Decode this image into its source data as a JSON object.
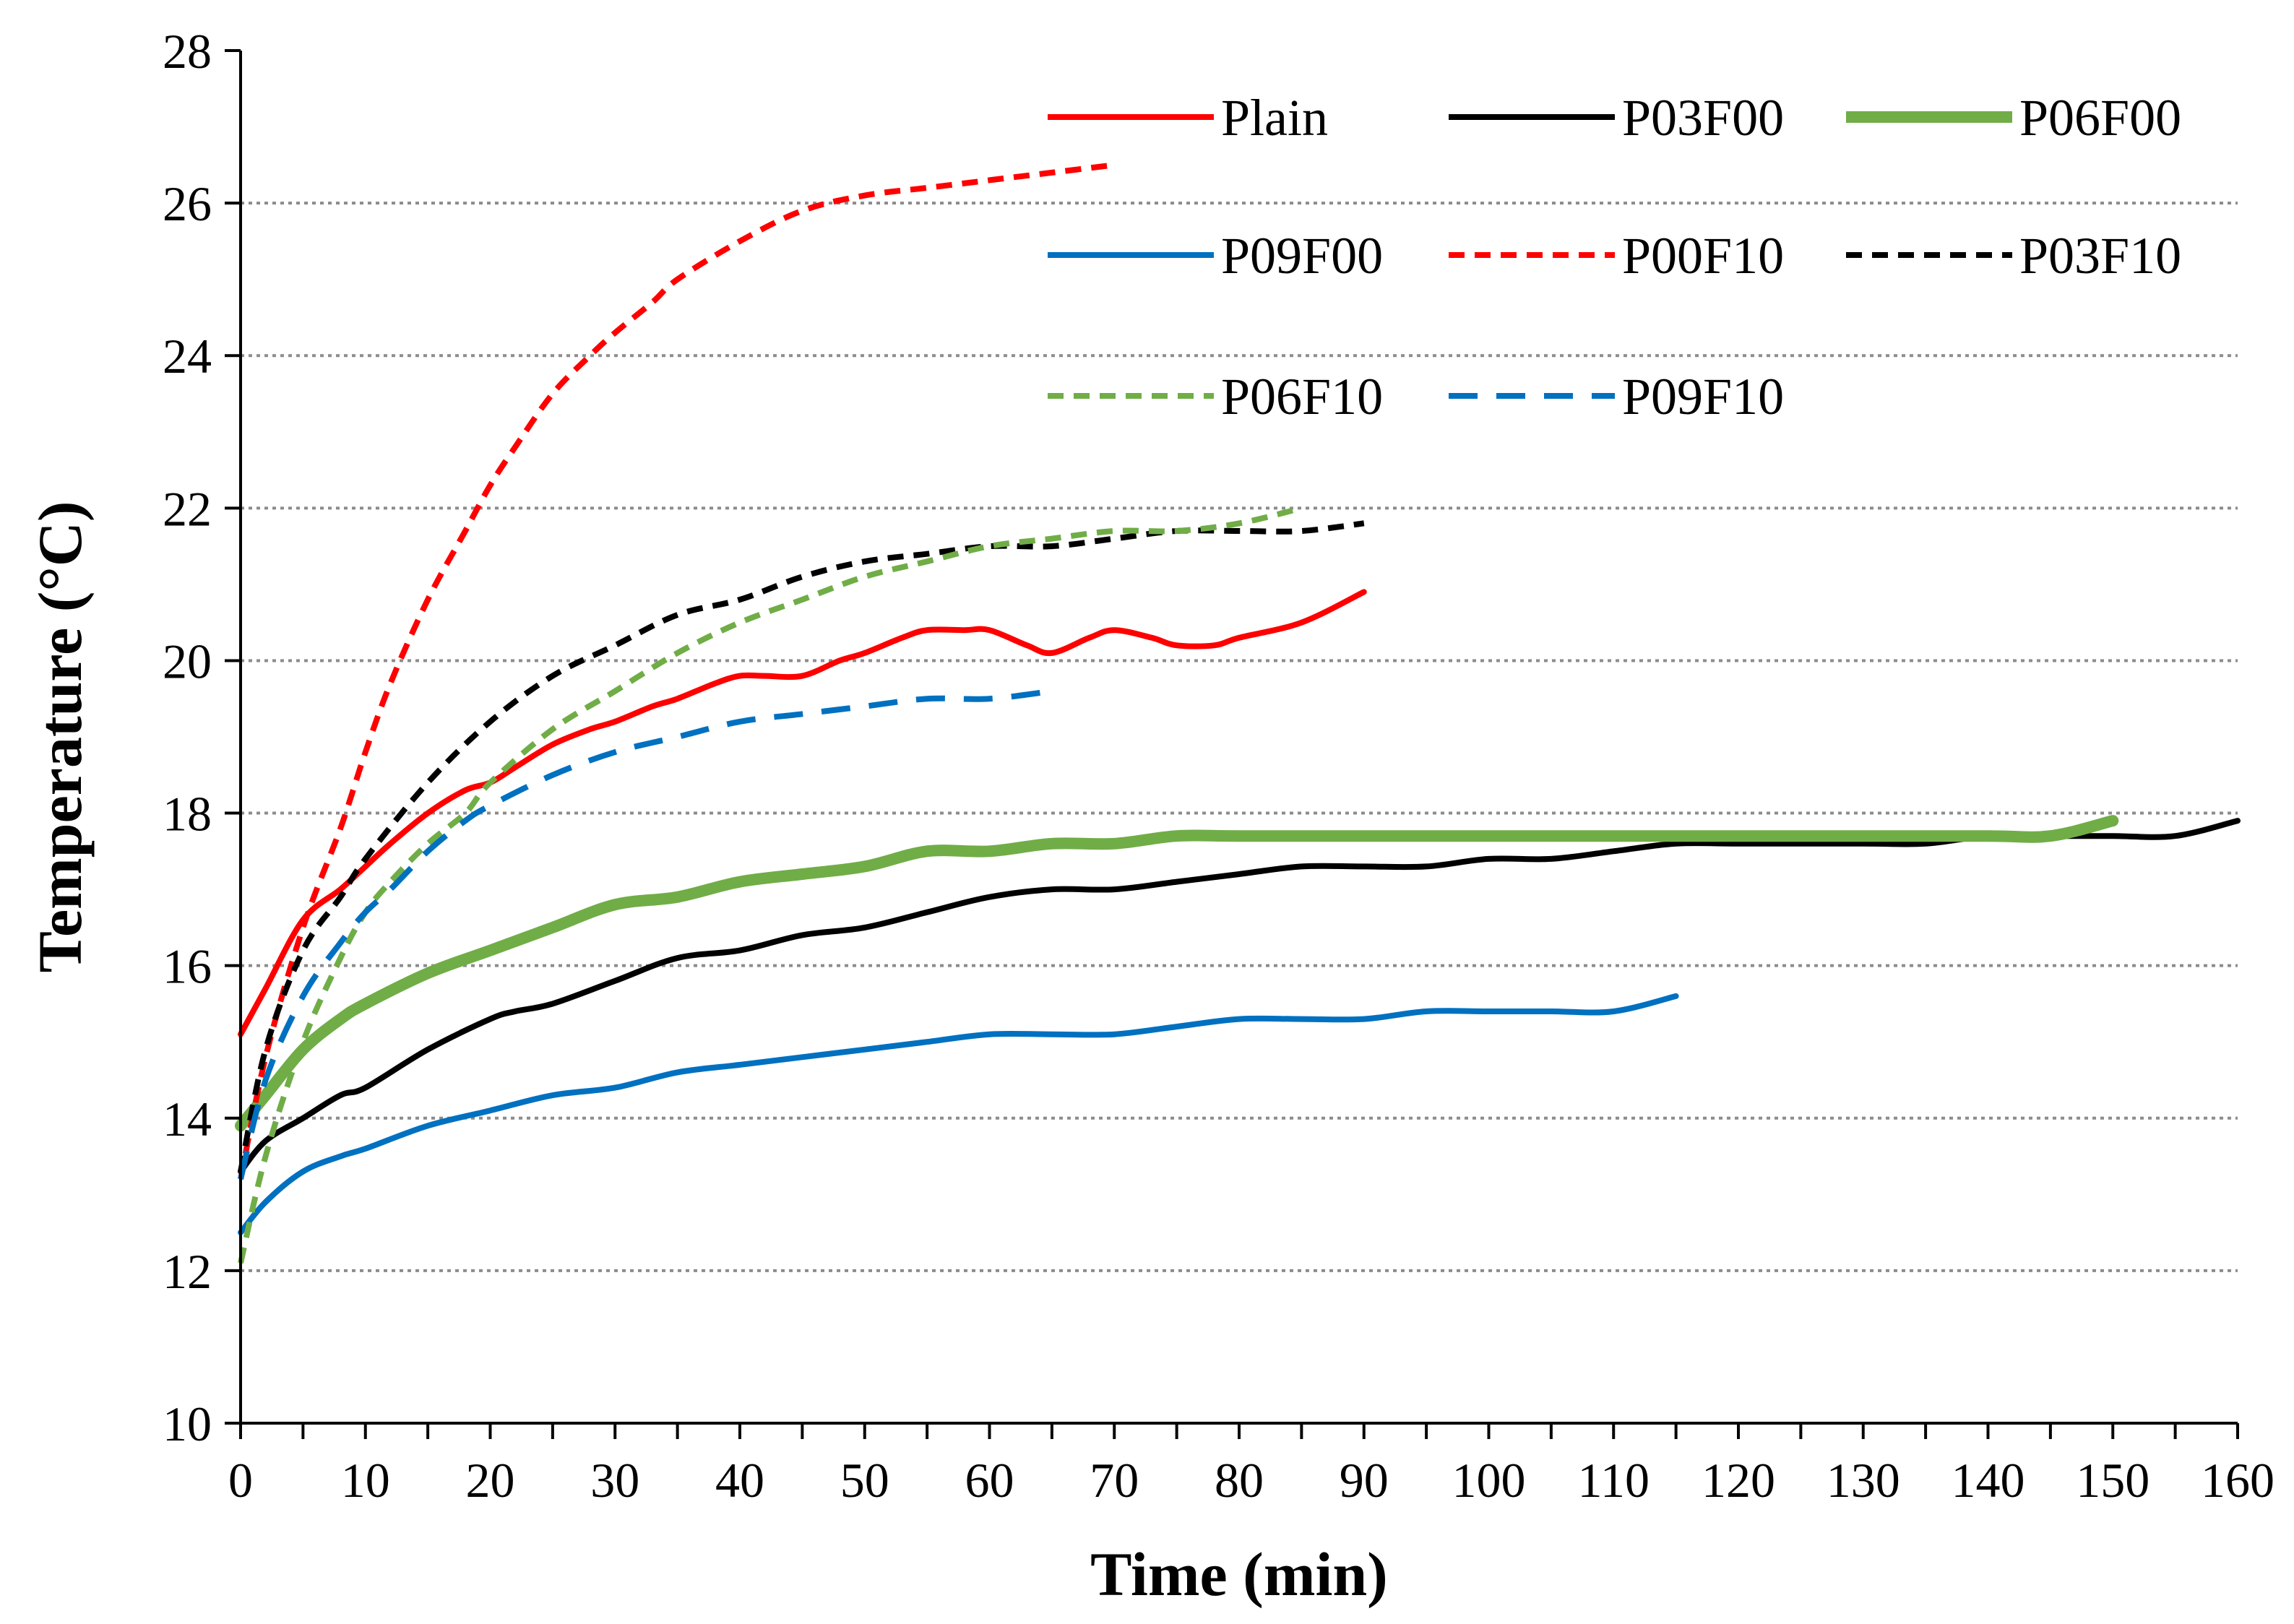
{
  "chart_data": {
    "type": "line",
    "title": "",
    "xlabel": "Time (min)",
    "ylabel": "Temperature (°C)",
    "xlim": [
      0,
      160
    ],
    "ylim": [
      10,
      28
    ],
    "xticks": [
      0,
      10,
      20,
      30,
      40,
      50,
      60,
      70,
      80,
      90,
      100,
      110,
      120,
      130,
      140,
      150,
      160
    ],
    "yticks": [
      10,
      12,
      14,
      16,
      18,
      20,
      22,
      24,
      26,
      28
    ],
    "grid": "horizontal dotted",
    "legend_position": "top-right",
    "series": [
      {
        "name": "Plain",
        "color": "#ff0000",
        "style": "solid",
        "width": "normal",
        "x": [
          0,
          2,
          5,
          8,
          10,
          12,
          15,
          18,
          20,
          22,
          25,
          28,
          30,
          33,
          35,
          38,
          40,
          42,
          45,
          48,
          50,
          53,
          55,
          58,
          60,
          63,
          65,
          68,
          70,
          73,
          75,
          78,
          80,
          85,
          90
        ],
        "y": [
          15.1,
          15.7,
          16.6,
          17.0,
          17.3,
          17.6,
          18.0,
          18.3,
          18.4,
          18.6,
          18.9,
          19.1,
          19.2,
          19.4,
          19.5,
          19.7,
          19.8,
          19.8,
          19.8,
          20.0,
          20.1,
          20.3,
          20.4,
          20.4,
          20.4,
          20.2,
          20.1,
          20.3,
          20.4,
          20.3,
          20.2,
          20.2,
          20.3,
          20.5,
          20.9
        ]
      },
      {
        "name": "P03F00",
        "color": "#000000",
        "style": "solid",
        "width": "normal",
        "x": [
          0,
          2,
          5,
          8,
          10,
          15,
          20,
          22,
          25,
          30,
          35,
          40,
          45,
          50,
          55,
          60,
          65,
          70,
          75,
          80,
          85,
          90,
          95,
          100,
          105,
          110,
          115,
          120,
          130,
          135,
          140,
          145,
          150,
          155,
          160
        ],
        "y": [
          13.3,
          13.7,
          14.0,
          14.3,
          14.4,
          14.9,
          15.3,
          15.4,
          15.5,
          15.8,
          16.1,
          16.2,
          16.4,
          16.5,
          16.7,
          16.9,
          17.0,
          17.0,
          17.1,
          17.2,
          17.3,
          17.3,
          17.3,
          17.4,
          17.4,
          17.5,
          17.6,
          17.6,
          17.6,
          17.6,
          17.7,
          17.7,
          17.7,
          17.7,
          17.9
        ]
      },
      {
        "name": "P06F00",
        "color": "#70ad47",
        "style": "solid",
        "width": "thick",
        "x": [
          0,
          2,
          5,
          8,
          10,
          15,
          20,
          25,
          30,
          35,
          40,
          45,
          50,
          55,
          60,
          65,
          70,
          75,
          80,
          90,
          100,
          110,
          120,
          130,
          140,
          145,
          150
        ],
        "y": [
          13.9,
          14.3,
          14.9,
          15.3,
          15.5,
          15.9,
          16.2,
          16.5,
          16.8,
          16.9,
          17.1,
          17.2,
          17.3,
          17.5,
          17.5,
          17.6,
          17.6,
          17.7,
          17.7,
          17.7,
          17.7,
          17.7,
          17.7,
          17.7,
          17.7,
          17.7,
          17.9
        ]
      },
      {
        "name": "P09F00",
        "color": "#0070c0",
        "style": "solid",
        "width": "normal",
        "x": [
          0,
          2,
          5,
          8,
          10,
          15,
          20,
          25,
          30,
          35,
          40,
          45,
          50,
          55,
          60,
          65,
          70,
          75,
          80,
          85,
          90,
          95,
          100,
          105,
          110,
          115
        ],
        "y": [
          12.5,
          12.9,
          13.3,
          13.5,
          13.6,
          13.9,
          14.1,
          14.3,
          14.4,
          14.6,
          14.7,
          14.8,
          14.9,
          15.0,
          15.1,
          15.1,
          15.1,
          15.2,
          15.3,
          15.3,
          15.3,
          15.4,
          15.4,
          15.4,
          15.4,
          15.6
        ]
      },
      {
        "name": "P00F10",
        "color": "#ff0000",
        "style": "dashed",
        "width": "normal",
        "x": [
          0,
          2,
          5,
          8,
          10,
          12,
          15,
          18,
          20,
          22,
          25,
          28,
          30,
          33,
          35,
          40,
          45,
          50,
          55,
          60,
          65,
          70
        ],
        "y": [
          13.2,
          14.8,
          16.5,
          17.8,
          18.8,
          19.7,
          20.8,
          21.7,
          22.3,
          22.8,
          23.5,
          24.0,
          24.3,
          24.7,
          25.0,
          25.5,
          25.9,
          26.1,
          26.2,
          26.3,
          26.4,
          26.5
        ]
      },
      {
        "name": "P03F10",
        "color": "#000000",
        "style": "dashed",
        "width": "normal",
        "x": [
          0,
          2,
          5,
          8,
          10,
          15,
          20,
          25,
          30,
          35,
          40,
          45,
          50,
          55,
          60,
          65,
          70,
          75,
          80,
          85,
          90
        ],
        "y": [
          13.3,
          14.9,
          16.2,
          16.9,
          17.4,
          18.4,
          19.2,
          19.8,
          20.2,
          20.6,
          20.8,
          21.1,
          21.3,
          21.4,
          21.5,
          21.5,
          21.6,
          21.7,
          21.7,
          21.7,
          21.8
        ]
      },
      {
        "name": "P06F10",
        "color": "#70ad47",
        "style": "dashed",
        "width": "normal",
        "x": [
          0,
          2,
          5,
          8,
          10,
          12,
          15,
          18,
          20,
          25,
          30,
          35,
          40,
          45,
          50,
          55,
          60,
          65,
          70,
          75,
          80,
          85
        ],
        "y": [
          12.1,
          13.5,
          15.0,
          16.1,
          16.7,
          17.1,
          17.6,
          18.0,
          18.4,
          19.1,
          19.6,
          20.1,
          20.5,
          20.8,
          21.1,
          21.3,
          21.5,
          21.6,
          21.7,
          21.7,
          21.8,
          22.0
        ]
      },
      {
        "name": "P09F10",
        "color": "#0070c0",
        "style": "dashed",
        "width": "normal",
        "x": [
          0,
          2,
          5,
          8,
          10,
          12,
          15,
          18,
          20,
          25,
          30,
          35,
          40,
          45,
          50,
          55,
          60,
          65
        ],
        "y": [
          13.2,
          14.5,
          15.6,
          16.3,
          16.7,
          17.0,
          17.5,
          17.9,
          18.1,
          18.5,
          18.8,
          19.0,
          19.2,
          19.3,
          19.4,
          19.5,
          19.5,
          19.6
        ]
      }
    ]
  }
}
